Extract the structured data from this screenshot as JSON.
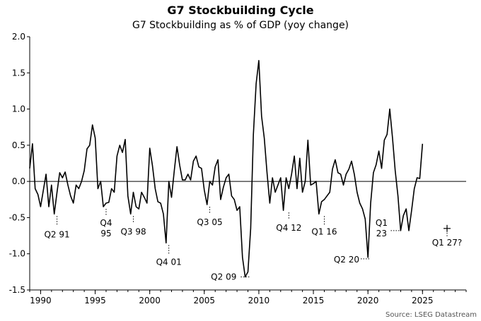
{
  "chart_data": {
    "type": "line",
    "title": "G7 Stockbuilding Cycle",
    "subtitle": "G7 Stockbuilding as % of GDP (yoy change)",
    "xlabel": "",
    "ylabel": "",
    "xlim": [
      1989.0,
      2029.0
    ],
    "ylim": [
      -1.5,
      2.0
    ],
    "xticks": [
      1990,
      1995,
      2000,
      2005,
      2010,
      2015,
      2020,
      2025
    ],
    "yticks": [
      -1.5,
      -1.0,
      -0.5,
      0.0,
      0.5,
      1.0,
      1.5,
      2.0
    ],
    "ytick_labels": [
      "-1.5",
      "-1.0",
      "-0.5",
      "0.0",
      "0.5",
      "1.0",
      "1.5",
      "2.0"
    ],
    "source": "Source: LSEG Datastream",
    "series": [
      {
        "name": "G7 Stockbuilding as % of GDP (yoy change)",
        "x": [
          1989.0,
          1989.25,
          1989.5,
          1989.75,
          1990.0,
          1990.25,
          1990.5,
          1990.75,
          1991.0,
          1991.25,
          1991.5,
          1991.75,
          1992.0,
          1992.25,
          1992.5,
          1992.75,
          1993.0,
          1993.25,
          1993.5,
          1993.75,
          1994.0,
          1994.25,
          1994.5,
          1994.75,
          1995.0,
          1995.25,
          1995.5,
          1995.75,
          1996.0,
          1996.25,
          1996.5,
          1996.75,
          1997.0,
          1997.25,
          1997.5,
          1997.75,
          1998.0,
          1998.25,
          1998.5,
          1998.75,
          1999.0,
          1999.25,
          1999.5,
          1999.75,
          2000.0,
          2000.25,
          2000.5,
          2000.75,
          2001.0,
          2001.25,
          2001.5,
          2001.75,
          2002.0,
          2002.25,
          2002.5,
          2002.75,
          2003.0,
          2003.25,
          2003.5,
          2003.75,
          2004.0,
          2004.25,
          2004.5,
          2004.75,
          2005.0,
          2005.25,
          2005.5,
          2005.75,
          2006.0,
          2006.25,
          2006.5,
          2006.75,
          2007.0,
          2007.25,
          2007.5,
          2007.75,
          2008.0,
          2008.25,
          2008.5,
          2008.75,
          2009.0,
          2009.25,
          2009.5,
          2009.75,
          2010.0,
          2010.25,
          2010.5,
          2010.75,
          2011.0,
          2011.25,
          2011.5,
          2011.75,
          2012.0,
          2012.25,
          2012.5,
          2012.75,
          2013.0,
          2013.25,
          2013.5,
          2013.75,
          2014.0,
          2014.25,
          2014.5,
          2014.75,
          2015.0,
          2015.25,
          2015.5,
          2015.75,
          2016.0,
          2016.25,
          2016.5,
          2016.75,
          2017.0,
          2017.25,
          2017.5,
          2017.75,
          2018.0,
          2018.25,
          2018.5,
          2018.75,
          2019.0,
          2019.25,
          2019.5,
          2019.75,
          2020.0,
          2020.25,
          2020.5,
          2020.75,
          2021.0,
          2021.25,
          2021.5,
          2021.75,
          2022.0,
          2022.25,
          2022.5,
          2022.75,
          2023.0,
          2023.25,
          2023.5,
          2023.75,
          2024.0,
          2024.25,
          2024.5,
          2024.75,
          2025.0
        ],
        "values": [
          0.18,
          0.52,
          -0.1,
          -0.18,
          -0.35,
          -0.12,
          0.1,
          -0.35,
          -0.05,
          -0.45,
          -0.15,
          0.12,
          0.05,
          0.13,
          -0.05,
          -0.2,
          -0.3,
          -0.05,
          -0.1,
          0.0,
          0.15,
          0.45,
          0.5,
          0.78,
          0.6,
          -0.1,
          0.0,
          -0.35,
          -0.3,
          -0.29,
          -0.1,
          -0.15,
          0.35,
          0.5,
          0.4,
          0.58,
          -0.2,
          -0.45,
          -0.15,
          -0.35,
          -0.38,
          -0.15,
          -0.22,
          -0.3,
          0.46,
          0.22,
          -0.1,
          -0.28,
          -0.3,
          -0.45,
          -0.85,
          0.0,
          -0.22,
          0.15,
          0.48,
          0.22,
          0.02,
          0.02,
          0.1,
          0.02,
          0.28,
          0.35,
          0.2,
          0.18,
          -0.12,
          -0.32,
          0.0,
          -0.05,
          0.2,
          0.3,
          -0.25,
          -0.08,
          0.05,
          0.1,
          -0.2,
          -0.25,
          -0.4,
          -0.35,
          -1.05,
          -1.32,
          -1.25,
          -0.65,
          0.65,
          1.35,
          1.67,
          0.9,
          0.6,
          0.12,
          -0.3,
          0.05,
          -0.15,
          -0.05,
          0.05,
          -0.4,
          0.05,
          -0.1,
          0.1,
          0.35,
          -0.1,
          0.32,
          -0.15,
          0.0,
          0.57,
          -0.05,
          -0.03,
          0.0,
          -0.45,
          -0.28,
          -0.25,
          -0.2,
          -0.15,
          0.17,
          0.3,
          0.12,
          0.1,
          -0.05,
          0.1,
          0.17,
          0.28,
          0.1,
          -0.15,
          -0.3,
          -0.38,
          -0.52,
          -1.05,
          -0.3,
          0.12,
          0.23,
          0.42,
          0.18,
          0.57,
          0.65,
          1.0,
          0.6,
          0.15,
          -0.2,
          -0.68,
          -0.47,
          -0.38,
          -0.68,
          -0.4,
          -0.1,
          0.05,
          0.04,
          0.52
        ]
      }
    ],
    "annotations": [
      {
        "id": "q2-91",
        "label": "Q2 91",
        "x": 1991.5,
        "y": -0.45
      },
      {
        "id": "q4-95",
        "label": [
          "Q4",
          "95"
        ],
        "x": 1996.0,
        "y": -0.35
      },
      {
        "id": "q3-98",
        "label": "Q3 98",
        "x": 1998.5,
        "y": -0.45
      },
      {
        "id": "q4-01",
        "label": "Q4 01",
        "x": 2001.75,
        "y": -0.85
      },
      {
        "id": "q3-05",
        "label": "Q3 05",
        "x": 2005.5,
        "y": -0.32
      },
      {
        "id": "q2-09",
        "label": "Q2 09",
        "x": 2009.25,
        "y": -1.32
      },
      {
        "id": "q4-12",
        "label": "Q4 12",
        "x": 2012.75,
        "y": -0.4
      },
      {
        "id": "q1-16",
        "label": "Q1 16",
        "x": 2016.0,
        "y": -0.45
      },
      {
        "id": "q2-20",
        "label": "Q2 20",
        "x": 2020.25,
        "y": -1.05
      },
      {
        "id": "q1-23",
        "label": [
          "Q1",
          "23"
        ],
        "x": 2023.0,
        "y": -0.68
      },
      {
        "id": "q1-27",
        "label": "Q1 27?",
        "x": 2027.25,
        "y": -0.65
      }
    ]
  }
}
